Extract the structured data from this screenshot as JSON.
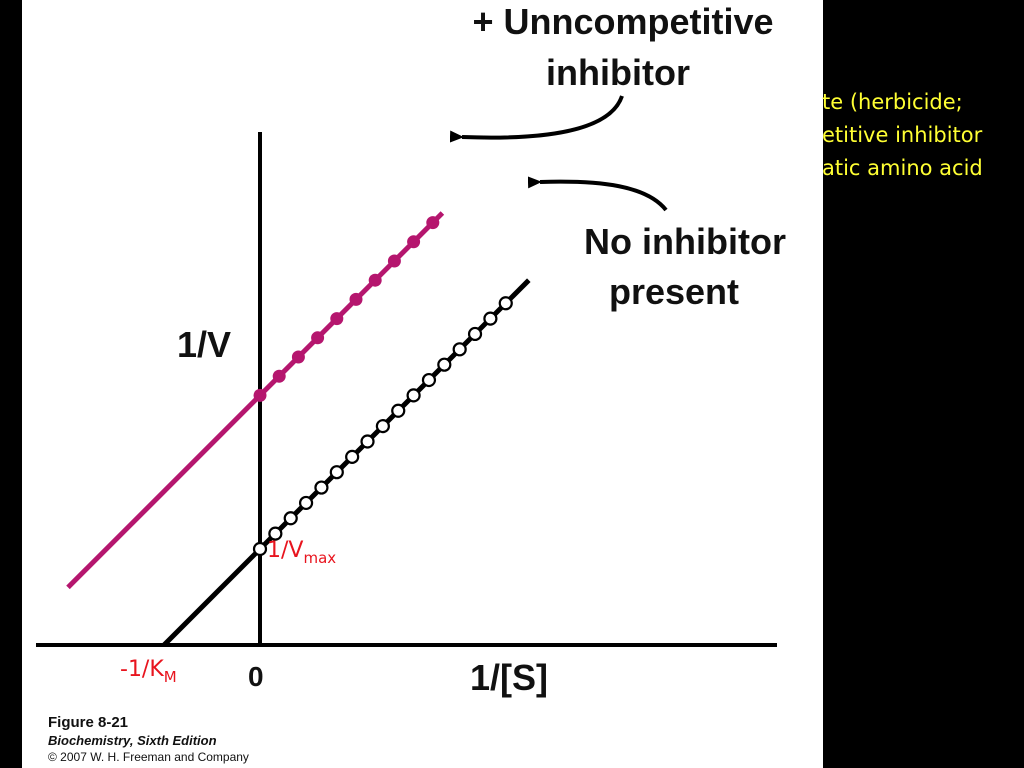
{
  "side_note": {
    "lines": [
      "te (herbicide;",
      "etitive inhibitor",
      "atic amino acid"
    ]
  },
  "caption": {
    "figure": "Figure 8-21",
    "book": "Biochemistry, Sixth Edition",
    "copyright": "© 2007 W. H. Freeman and Company"
  },
  "colors": {
    "inhibited": "#b5166e",
    "control": "#000000",
    "annotation": "#e8141e",
    "side_note": "#ffff33"
  },
  "chart_data": {
    "type": "line",
    "title": "",
    "xlabel": "1/[S]",
    "ylabel": "1/V",
    "x_tick_labels": [
      "0"
    ],
    "xlim": [
      -1.0,
      2.6
    ],
    "ylim": [
      0,
      2.6
    ],
    "annotations": {
      "x_intercept": {
        "main": "-1/K",
        "sub": "M"
      },
      "y_intercept": {
        "main": "1/V",
        "sub": "max"
      }
    },
    "series": [
      {
        "name": "+ Unncompetitive inhibitor",
        "label_lines": [
          "+ Unncompetitive",
          "inhibitor"
        ],
        "marker": "filled",
        "slope": 1.0,
        "intercept": 1.3,
        "line_range": [
          -1.0,
          0.95
        ],
        "x": [
          0.0,
          0.1,
          0.2,
          0.3,
          0.4,
          0.5,
          0.6,
          0.7,
          0.8,
          0.9
        ],
        "y": [
          1.3,
          1.4,
          1.5,
          1.6,
          1.7,
          1.8,
          1.9,
          2.0,
          2.1,
          2.2
        ]
      },
      {
        "name": "No inhibitor present",
        "label_lines": [
          "No inhibitor",
          "present"
        ],
        "marker": "open",
        "slope": 1.0,
        "intercept": 0.5,
        "line_range": [
          -0.5,
          1.4
        ],
        "x": [
          0.0,
          0.08,
          0.16,
          0.24,
          0.32,
          0.4,
          0.48,
          0.56,
          0.64,
          0.72,
          0.8,
          0.88,
          0.96,
          1.04,
          1.12,
          1.2,
          1.28
        ],
        "y": [
          0.5,
          0.58,
          0.66,
          0.74,
          0.82,
          0.9,
          0.98,
          1.06,
          1.14,
          1.22,
          1.3,
          1.38,
          1.46,
          1.54,
          1.62,
          1.7,
          1.78
        ]
      }
    ]
  }
}
